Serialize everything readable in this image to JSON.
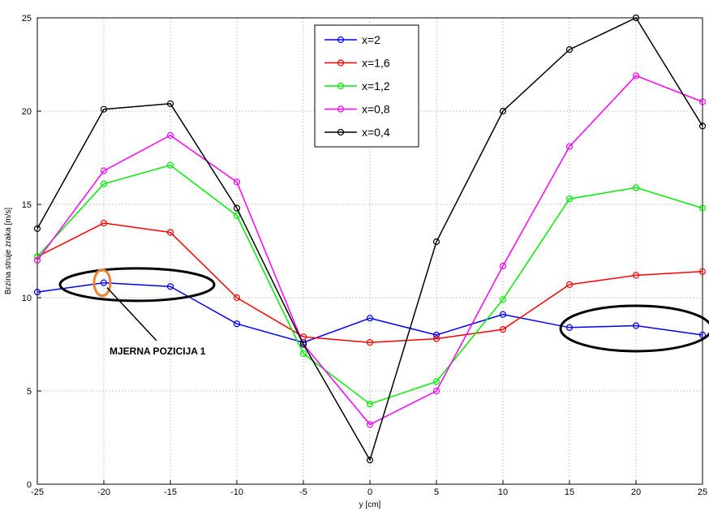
{
  "chart_data": {
    "type": "line",
    "title": "",
    "xlabel": "y [cm]",
    "ylabel": "Brzina struje zraka [m/s]",
    "xlim": [
      -25,
      25
    ],
    "ylim": [
      0,
      25
    ],
    "xticks": [
      -25,
      -20,
      -15,
      -10,
      -5,
      0,
      5,
      10,
      15,
      20,
      25
    ],
    "yticks": [
      0,
      5,
      10,
      15,
      20,
      25
    ],
    "grid": true,
    "legend_position": "top-center",
    "x": [
      -25,
      -20,
      -15,
      -10,
      -5,
      0,
      5,
      10,
      15,
      20,
      25
    ],
    "series": [
      {
        "name": "x=2",
        "color": "#0000ff",
        "values": [
          10.3,
          10.8,
          10.6,
          8.6,
          7.6,
          8.9,
          8.0,
          9.1,
          8.4,
          8.5,
          8.0
        ]
      },
      {
        "name": "x=1,6",
        "color": "#ff0000",
        "values": [
          12.2,
          14.0,
          13.5,
          10.0,
          7.9,
          7.6,
          7.8,
          8.3,
          10.7,
          11.2,
          11.4
        ]
      },
      {
        "name": "x=1,2",
        "color": "#00ee00",
        "values": [
          12.2,
          16.1,
          17.1,
          14.4,
          7.0,
          4.3,
          5.5,
          9.9,
          15.3,
          15.9,
          14.8
        ]
      },
      {
        "name": "x=0,8",
        "color": "#ff00ff",
        "values": [
          12.0,
          16.8,
          18.7,
          16.2,
          7.5,
          3.2,
          5.0,
          11.7,
          18.1,
          21.9,
          20.5
        ]
      },
      {
        "name": "x=0,4",
        "color": "#000000",
        "values": [
          13.7,
          20.1,
          20.4,
          14.8,
          7.5,
          1.3,
          13.0,
          20.0,
          23.3,
          25.0,
          19.2
        ]
      }
    ],
    "annotations": [
      {
        "text": "MJERNA POZICIJA 1",
        "target": {
          "x": -20,
          "y": 10.8
        }
      }
    ]
  },
  "colors": {
    "highlight_ellipse": "#000000",
    "marker_highlight": "#f08030",
    "grid": "#c8c8c8"
  }
}
